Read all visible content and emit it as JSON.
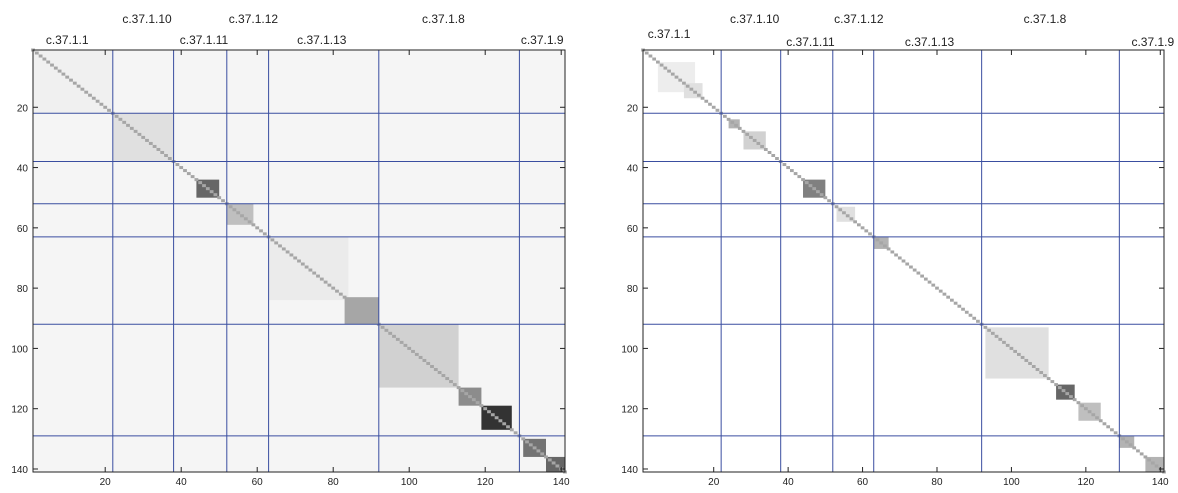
{
  "chart_data": [
    {
      "type": "heatmap",
      "panel": "left",
      "matrix_size": 141,
      "xlim": [
        1,
        141
      ],
      "ylim": [
        1,
        141
      ],
      "x_ticks": [
        20,
        40,
        60,
        80,
        100,
        120,
        140
      ],
      "y_ticks": [
        20,
        40,
        60,
        80,
        100,
        120,
        140
      ],
      "y_reversed": true,
      "colormap": "white-to-black",
      "boundaries": [
        22,
        38,
        52,
        63,
        92,
        129
      ],
      "cluster_labels": [
        {
          "label": "c.37.1.1",
          "row": "lower",
          "x": 10
        },
        {
          "label": "c.37.1.10",
          "row": "upper",
          "x": 31
        },
        {
          "label": "c.37.1.11",
          "row": "lower",
          "x": 46
        },
        {
          "label": "c.37.1.12",
          "row": "upper",
          "x": 59
        },
        {
          "label": "c.37.1.13",
          "row": "lower",
          "x": 77
        },
        {
          "label": "c.37.1.8",
          "row": "upper",
          "x": 109
        },
        {
          "label": "c.37.1.9",
          "row": "lower",
          "x": 135
        }
      ],
      "blocks": [
        {
          "from": 1,
          "to": 141,
          "value": 0.04
        },
        {
          "from": 1,
          "to": 22,
          "value": 0.06
        },
        {
          "from": 22,
          "to": 38,
          "value": 0.12
        },
        {
          "from": 44,
          "to": 50,
          "value": 0.6
        },
        {
          "from": 52,
          "to": 59,
          "value": 0.25
        },
        {
          "from": 63,
          "to": 84,
          "value": 0.08
        },
        {
          "from": 83,
          "to": 92,
          "value": 0.35
        },
        {
          "from": 92,
          "to": 113,
          "value": 0.18
        },
        {
          "from": 113,
          "to": 119,
          "value": 0.45
        },
        {
          "from": 119,
          "to": 127,
          "value": 0.8
        },
        {
          "from": 130,
          "to": 136,
          "value": 0.55
        },
        {
          "from": 136,
          "to": 141,
          "value": 0.6
        }
      ],
      "diagonal_value": 0.35
    },
    {
      "type": "heatmap",
      "panel": "right",
      "matrix_size": 141,
      "xlim": [
        1,
        141
      ],
      "ylim": [
        1,
        141
      ],
      "x_ticks": [
        20,
        40,
        60,
        80,
        100,
        120,
        140
      ],
      "y_ticks": [
        20,
        40,
        60,
        80,
        100,
        120,
        140
      ],
      "y_reversed": true,
      "colormap": "white-to-black",
      "boundaries": [
        22,
        38,
        52,
        63,
        92,
        129
      ],
      "cluster_labels": [
        {
          "label": "c.37.1.1",
          "row": "lower",
          "x": 8
        },
        {
          "label": "c.37.1.10",
          "row": "upper",
          "x": 31
        },
        {
          "label": "c.37.1.11",
          "row": "mid",
          "x": 46
        },
        {
          "label": "c.37.1.12",
          "row": "upper",
          "x": 59
        },
        {
          "label": "c.37.1.13",
          "row": "mid",
          "x": 78
        },
        {
          "label": "c.37.1.8",
          "row": "upper",
          "x": 109
        },
        {
          "label": "c.37.1.9",
          "row": "mid",
          "x": 138
        }
      ],
      "blocks": [
        {
          "from": 5,
          "to": 15,
          "value": 0.07
        },
        {
          "from": 12,
          "to": 17,
          "value": 0.12
        },
        {
          "from": 24,
          "to": 27,
          "value": 0.3
        },
        {
          "from": 28,
          "to": 34,
          "value": 0.18
        },
        {
          "from": 44,
          "to": 50,
          "value": 0.5
        },
        {
          "from": 53,
          "to": 58,
          "value": 0.12
        },
        {
          "from": 63,
          "to": 67,
          "value": 0.3
        },
        {
          "from": 93,
          "to": 110,
          "value": 0.12
        },
        {
          "from": 112,
          "to": 117,
          "value": 0.6
        },
        {
          "from": 118,
          "to": 124,
          "value": 0.25
        },
        {
          "from": 129,
          "to": 133,
          "value": 0.3
        },
        {
          "from": 136,
          "to": 141,
          "value": 0.3
        }
      ],
      "diagonal_value": 0.35
    }
  ]
}
